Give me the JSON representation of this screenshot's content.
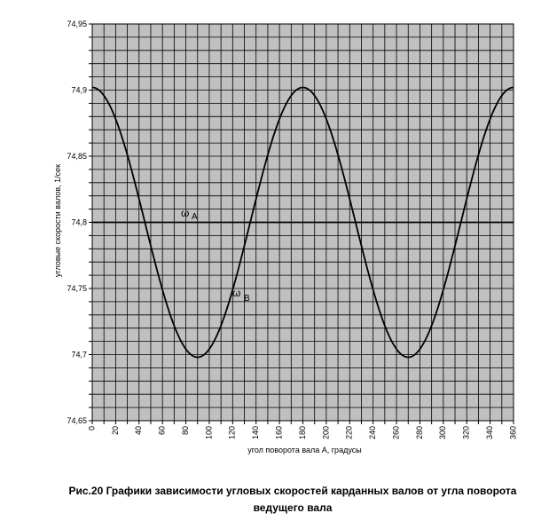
{
  "chart_data": {
    "type": "line",
    "title": "",
    "xlabel": "угол поворота вала А, градусы",
    "ylabel": "угловые скорости валов, 1/сек",
    "xlim": [
      0,
      360
    ],
    "ylim": [
      74.65,
      74.95
    ],
    "x_ticks": [
      0,
      20,
      40,
      60,
      80,
      100,
      120,
      140,
      160,
      180,
      200,
      220,
      240,
      260,
      280,
      300,
      320,
      340,
      360
    ],
    "x_tick_labels": [
      "0",
      "20",
      "40",
      "60",
      "80",
      "100",
      "120",
      "140",
      "160",
      "180",
      "200",
      "220",
      "240",
      "260",
      "280",
      "300",
      "320",
      "340",
      "360"
    ],
    "y_ticks": [
      74.65,
      74.7,
      74.75,
      74.8,
      74.85,
      74.9,
      74.95
    ],
    "y_tick_labels": [
      "74,65",
      "74,7",
      "74,75",
      "74,8",
      "74,85",
      "74,9",
      "74,95"
    ],
    "grid": true,
    "legend": "none",
    "series": [
      {
        "label_main": "ω",
        "label_sub": "A",
        "x": [
          0,
          360
        ],
        "y": [
          74.8,
          74.8
        ]
      },
      {
        "label_main": "ω",
        "label_sub": "B",
        "x": [
          0,
          10,
          20,
          30,
          40,
          50,
          60,
          70,
          80,
          90,
          100,
          110,
          120,
          130,
          140,
          150,
          160,
          170,
          180,
          190,
          200,
          210,
          220,
          230,
          240,
          250,
          260,
          270,
          280,
          290,
          300,
          310,
          320,
          330,
          340,
          350,
          360
        ],
        "y": [
          74.902,
          74.896,
          74.878,
          74.851,
          74.817,
          74.78,
          74.746,
          74.718,
          74.703,
          74.698,
          74.703,
          74.718,
          74.746,
          74.78,
          74.817,
          74.851,
          74.878,
          74.896,
          74.902,
          74.896,
          74.878,
          74.851,
          74.817,
          74.78,
          74.746,
          74.718,
          74.703,
          74.698,
          74.703,
          74.718,
          74.746,
          74.78,
          74.817,
          74.851,
          74.878,
          74.896,
          74.902
        ]
      }
    ]
  },
  "caption": {
    "line1": "Рис.20 Графики зависимости угловых скоростей карданных валов от угла поворота",
    "line2": "ведущего вала"
  }
}
